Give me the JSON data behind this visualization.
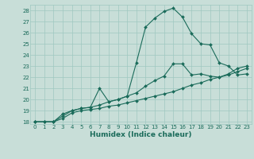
{
  "title": "",
  "xlabel": "Humidex (Indice chaleur)",
  "bg_color": "#c8ded8",
  "line_color": "#1a6b5a",
  "grid_color": "#9fc8c0",
  "xlim": [
    -0.5,
    23.5
  ],
  "ylim": [
    17.8,
    28.5
  ],
  "xticks": [
    0,
    1,
    2,
    3,
    4,
    5,
    6,
    7,
    8,
    9,
    10,
    11,
    12,
    13,
    14,
    15,
    16,
    17,
    18,
    19,
    20,
    21,
    22,
    23
  ],
  "yticks": [
    18,
    19,
    20,
    21,
    22,
    23,
    24,
    25,
    26,
    27,
    28
  ],
  "line1_x": [
    0,
    1,
    2,
    3,
    4,
    5,
    6,
    7,
    8,
    9,
    10,
    11,
    12,
    13,
    14,
    15,
    16,
    17,
    18,
    19,
    20,
    21,
    22,
    23
  ],
  "line1_y": [
    18,
    18,
    18,
    18.3,
    18.8,
    19.0,
    19.1,
    19.2,
    19.4,
    19.5,
    19.7,
    19.9,
    20.1,
    20.3,
    20.5,
    20.7,
    21.0,
    21.3,
    21.5,
    21.8,
    22.0,
    22.2,
    22.5,
    22.8
  ],
  "line2_x": [
    0,
    1,
    2,
    3,
    4,
    5,
    6,
    7,
    8,
    9,
    10,
    11,
    12,
    13,
    14,
    15,
    16,
    17,
    18,
    19,
    20,
    21,
    22,
    23
  ],
  "line2_y": [
    18,
    18,
    18,
    18.5,
    19.0,
    19.2,
    19.3,
    19.5,
    19.8,
    20.0,
    20.3,
    20.6,
    21.2,
    21.7,
    22.1,
    23.2,
    23.2,
    22.2,
    22.3,
    22.1,
    22.0,
    22.3,
    22.8,
    23.0
  ],
  "line3_x": [
    0,
    1,
    2,
    3,
    4,
    5,
    6,
    7,
    8,
    9,
    10,
    11,
    12,
    13,
    14,
    15,
    16,
    17,
    18,
    19,
    20,
    21,
    22,
    23
  ],
  "line3_y": [
    18,
    18,
    18,
    18.7,
    19.0,
    19.2,
    19.3,
    21.0,
    19.8,
    20.0,
    20.3,
    23.3,
    26.5,
    27.3,
    27.9,
    28.2,
    27.4,
    25.9,
    25.0,
    24.9,
    23.3,
    23.0,
    22.2,
    22.3
  ],
  "tick_fontsize": 5.0,
  "xlabel_fontsize": 6.5,
  "marker_size": 2.0,
  "linewidth": 0.8
}
